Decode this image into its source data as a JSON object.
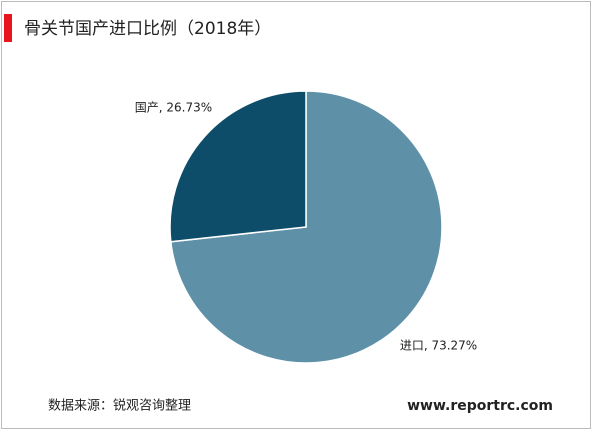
{
  "chart_data": {
    "type": "pie",
    "title": "骨关节国产进口比例（2018年）",
    "values": [
      73.27,
      26.73
    ],
    "value_labels": [
      "进口, 73.27%",
      "国产, 26.73%"
    ],
    "colors": [
      "#5e90a8",
      "#0e4d69"
    ],
    "source": "数据来源：锐观咨询整理",
    "website": "www.reportrc.com"
  }
}
